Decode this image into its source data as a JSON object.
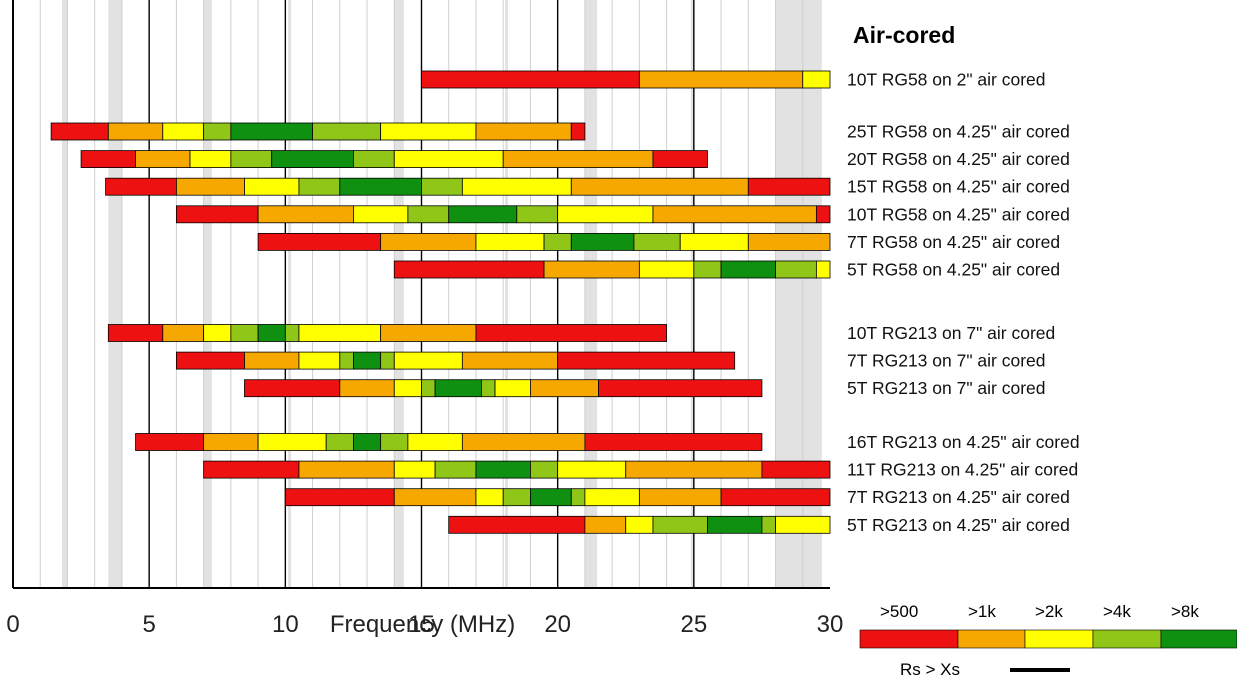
{
  "chart_data": {
    "type": "bar",
    "title": "Air-cored",
    "xlabel": "Frequency (MHz)",
    "xlim": [
      0,
      30
    ],
    "xticks": [
      0,
      5,
      10,
      15,
      20,
      25,
      30
    ],
    "shaded_bands_mhz": [
      [
        1.8,
        2.0
      ],
      [
        3.5,
        4.0
      ],
      [
        7.0,
        7.3
      ],
      [
        10.1,
        10.15
      ],
      [
        14.0,
        14.35
      ],
      [
        18.068,
        18.168
      ],
      [
        21.0,
        21.45
      ],
      [
        24.89,
        24.99
      ],
      [
        28.0,
        29.7
      ]
    ],
    "legend": {
      "labels": [
        ">500",
        ">1k",
        ">2k",
        ">4k",
        ">8k"
      ],
      "colors": [
        "#ee1111",
        "#f7a800",
        "#ffff00",
        "#8fc618",
        "#109010"
      ],
      "rs_label": "Rs > Xs"
    },
    "groups": [
      {
        "rows": [
          {
            "label": "10T RG58 on 2\" air cored",
            "segments": [
              [
                15.0,
                23.0,
                0
              ],
              [
                23.0,
                29.0,
                1
              ],
              [
                29.0,
                30.0,
                2
              ]
            ]
          }
        ]
      },
      {
        "rows": [
          {
            "label": "25T RG58 on 4.25\" air cored",
            "segments": [
              [
                1.4,
                3.5,
                0
              ],
              [
                3.5,
                5.5,
                1
              ],
              [
                5.5,
                7.0,
                2
              ],
              [
                7.0,
                8.0,
                3
              ],
              [
                8.0,
                11.0,
                4
              ],
              [
                11.0,
                13.5,
                3
              ],
              [
                13.5,
                17.0,
                2
              ],
              [
                17.0,
                20.5,
                1
              ],
              [
                20.5,
                21.0,
                0
              ]
            ]
          },
          {
            "label": "20T RG58 on 4.25\" air cored",
            "segments": [
              [
                2.5,
                4.5,
                0
              ],
              [
                4.5,
                6.5,
                1
              ],
              [
                6.5,
                8.0,
                2
              ],
              [
                8.0,
                9.5,
                3
              ],
              [
                9.5,
                12.5,
                4
              ],
              [
                12.5,
                14.0,
                3
              ],
              [
                14.0,
                18.0,
                2
              ],
              [
                18.0,
                23.5,
                1
              ],
              [
                23.5,
                25.5,
                0
              ]
            ]
          },
          {
            "label": "15T RG58 on 4.25\" air cored",
            "segments": [
              [
                3.4,
                6.0,
                0
              ],
              [
                6.0,
                8.5,
                1
              ],
              [
                8.5,
                10.5,
                2
              ],
              [
                10.5,
                12.0,
                3
              ],
              [
                12.0,
                15.0,
                4
              ],
              [
                15.0,
                16.5,
                3
              ],
              [
                16.5,
                20.5,
                2
              ],
              [
                20.5,
                27.0,
                1
              ],
              [
                27.0,
                30.0,
                0
              ]
            ]
          },
          {
            "label": "10T RG58 on 4.25\" air cored",
            "segments": [
              [
                6.0,
                9.0,
                0
              ],
              [
                9.0,
                12.5,
                1
              ],
              [
                12.5,
                14.5,
                2
              ],
              [
                14.5,
                16.0,
                3
              ],
              [
                16.0,
                18.5,
                4
              ],
              [
                18.5,
                20.0,
                3
              ],
              [
                20.0,
                23.5,
                2
              ],
              [
                23.5,
                29.5,
                1
              ],
              [
                29.5,
                30.0,
                0
              ]
            ]
          },
          {
            "label": "7T RG58 on 4.25\" air cored",
            "segments": [
              [
                9.0,
                13.5,
                0
              ],
              [
                13.5,
                17.0,
                1
              ],
              [
                17.0,
                19.5,
                2
              ],
              [
                19.5,
                20.5,
                3
              ],
              [
                20.5,
                22.8,
                4
              ],
              [
                22.8,
                24.5,
                3
              ],
              [
                24.5,
                27.0,
                2
              ],
              [
                27.0,
                30.0,
                1
              ]
            ]
          },
          {
            "label": "5T RG58 on 4.25\" air cored",
            "segments": [
              [
                14.0,
                19.5,
                0
              ],
              [
                19.5,
                23.0,
                1
              ],
              [
                23.0,
                25.0,
                2
              ],
              [
                25.0,
                26.0,
                3
              ],
              [
                26.0,
                28.0,
                4
              ],
              [
                28.0,
                29.5,
                3
              ],
              [
                29.5,
                30.0,
                2
              ]
            ]
          }
        ]
      },
      {
        "rows": [
          {
            "label": "10T RG213 on 7\" air cored",
            "segments": [
              [
                3.5,
                5.5,
                0
              ],
              [
                5.5,
                7.0,
                1
              ],
              [
                7.0,
                8.0,
                2
              ],
              [
                8.0,
                9.0,
                3
              ],
              [
                9.0,
                10.0,
                4
              ],
              [
                10.0,
                10.5,
                3
              ],
              [
                10.5,
                13.5,
                2
              ],
              [
                13.5,
                17.0,
                1
              ],
              [
                17.0,
                24.0,
                0
              ]
            ]
          },
          {
            "label": "7T RG213 on 7\" air cored",
            "segments": [
              [
                6.0,
                8.5,
                0
              ],
              [
                8.5,
                10.5,
                1
              ],
              [
                10.5,
                12.0,
                2
              ],
              [
                12.0,
                12.5,
                3
              ],
              [
                12.5,
                13.5,
                4
              ],
              [
                13.5,
                14.0,
                3
              ],
              [
                14.0,
                16.5,
                2
              ],
              [
                16.5,
                20.0,
                1
              ],
              [
                20.0,
                26.5,
                0
              ]
            ]
          },
          {
            "label": "5T RG213 on 7\" air cored",
            "segments": [
              [
                8.5,
                12.0,
                0
              ],
              [
                12.0,
                14.0,
                1
              ],
              [
                14.0,
                15.0,
                2
              ],
              [
                15.0,
                15.5,
                3
              ],
              [
                15.5,
                17.2,
                4
              ],
              [
                17.2,
                17.7,
                3
              ],
              [
                17.7,
                19.0,
                2
              ],
              [
                19.0,
                21.5,
                1
              ],
              [
                21.5,
                27.5,
                0
              ]
            ]
          }
        ]
      },
      {
        "rows": [
          {
            "label": "16T RG213 on 4.25\" air cored",
            "segments": [
              [
                4.5,
                7.0,
                0
              ],
              [
                7.0,
                9.0,
                1
              ],
              [
                9.0,
                11.5,
                2
              ],
              [
                11.5,
                12.5,
                3
              ],
              [
                12.5,
                13.5,
                4
              ],
              [
                13.5,
                14.5,
                3
              ],
              [
                14.5,
                16.5,
                2
              ],
              [
                16.5,
                21.0,
                1
              ],
              [
                21.0,
                27.5,
                0
              ]
            ]
          },
          {
            "label": "11T RG213 on 4.25\" air cored",
            "segments": [
              [
                7.0,
                10.5,
                0
              ],
              [
                10.5,
                14.0,
                1
              ],
              [
                14.0,
                15.5,
                2
              ],
              [
                15.5,
                17.0,
                3
              ],
              [
                17.0,
                19.0,
                4
              ],
              [
                19.0,
                20.0,
                3
              ],
              [
                20.0,
                22.5,
                2
              ],
              [
                22.5,
                27.5,
                1
              ],
              [
                27.5,
                30.0,
                0
              ]
            ]
          },
          {
            "label": "7T RG213 on 4.25\" air cored",
            "segments": [
              [
                10.0,
                14.0,
                0
              ],
              [
                14.0,
                17.0,
                1
              ],
              [
                17.0,
                18.0,
                2
              ],
              [
                18.0,
                19.0,
                3
              ],
              [
                19.0,
                20.5,
                4
              ],
              [
                20.5,
                21.0,
                3
              ],
              [
                21.0,
                23.0,
                2
              ],
              [
                23.0,
                26.0,
                1
              ],
              [
                26.0,
                30.0,
                0
              ]
            ]
          },
          {
            "label": "5T RG213 on 4.25\" air cored",
            "segments": [
              [
                16.0,
                21.0,
                0
              ],
              [
                21.0,
                22.5,
                1
              ],
              [
                22.5,
                23.5,
                2
              ],
              [
                23.5,
                25.5,
                3
              ],
              [
                25.5,
                27.5,
                4
              ],
              [
                27.5,
                28.0,
                3
              ],
              [
                28.0,
                30.0,
                2
              ]
            ]
          }
        ]
      }
    ]
  }
}
